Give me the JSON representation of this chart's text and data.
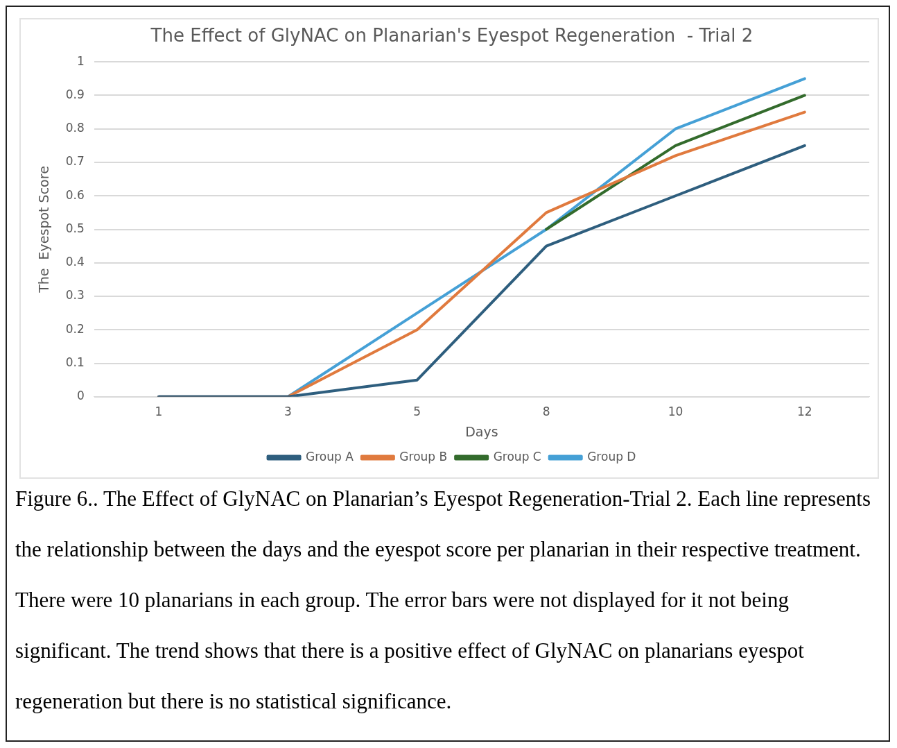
{
  "chart_data": {
    "type": "line",
    "title": "The Effect of GlyNAC on Planarian's Eyespot Regeneration  - Trial 2",
    "xlabel": "Days",
    "ylabel": "The  Eyespot Score",
    "categories": [
      "1",
      "3",
      "5",
      "8",
      "10",
      "12"
    ],
    "series": [
      {
        "name": "Group A",
        "color": "#2e5e7e",
        "values": [
          0,
          0,
          0.05,
          0.45,
          0.6,
          0.75
        ]
      },
      {
        "name": "Group B",
        "color": "#e07a3e",
        "values": [
          0,
          0,
          0.2,
          0.55,
          0.72,
          0.85
        ]
      },
      {
        "name": "Group C",
        "color": "#336b2c",
        "values": [
          null,
          null,
          null,
          0.5,
          0.75,
          0.9
        ]
      },
      {
        "name": "Group D",
        "color": "#45a0d6",
        "values": [
          0,
          0,
          0.25,
          0.5,
          0.8,
          0.95
        ]
      }
    ],
    "ylim": [
      0,
      1
    ],
    "yticks": [
      0,
      0.1,
      0.2,
      0.3,
      0.4,
      0.5,
      0.6,
      0.7,
      0.8,
      0.9,
      1
    ],
    "grid": "y",
    "legend": "bottom",
    "marker": "none",
    "line_style": "solid",
    "annotations": [
      "Figure 6.. The Effect of GlyNAC on Planarian’s Eyespot Regeneration-Trial 2. Each line represents the relationship between the days and the eyespot score per planarian in their respective treatment. There were 10 planarians in each group. The error bars were not displayed for it not being significant. The trend shows that there is a positive effect of GlyNAC on planarians eyespot regeneration but there is no statistical significance."
    ]
  }
}
